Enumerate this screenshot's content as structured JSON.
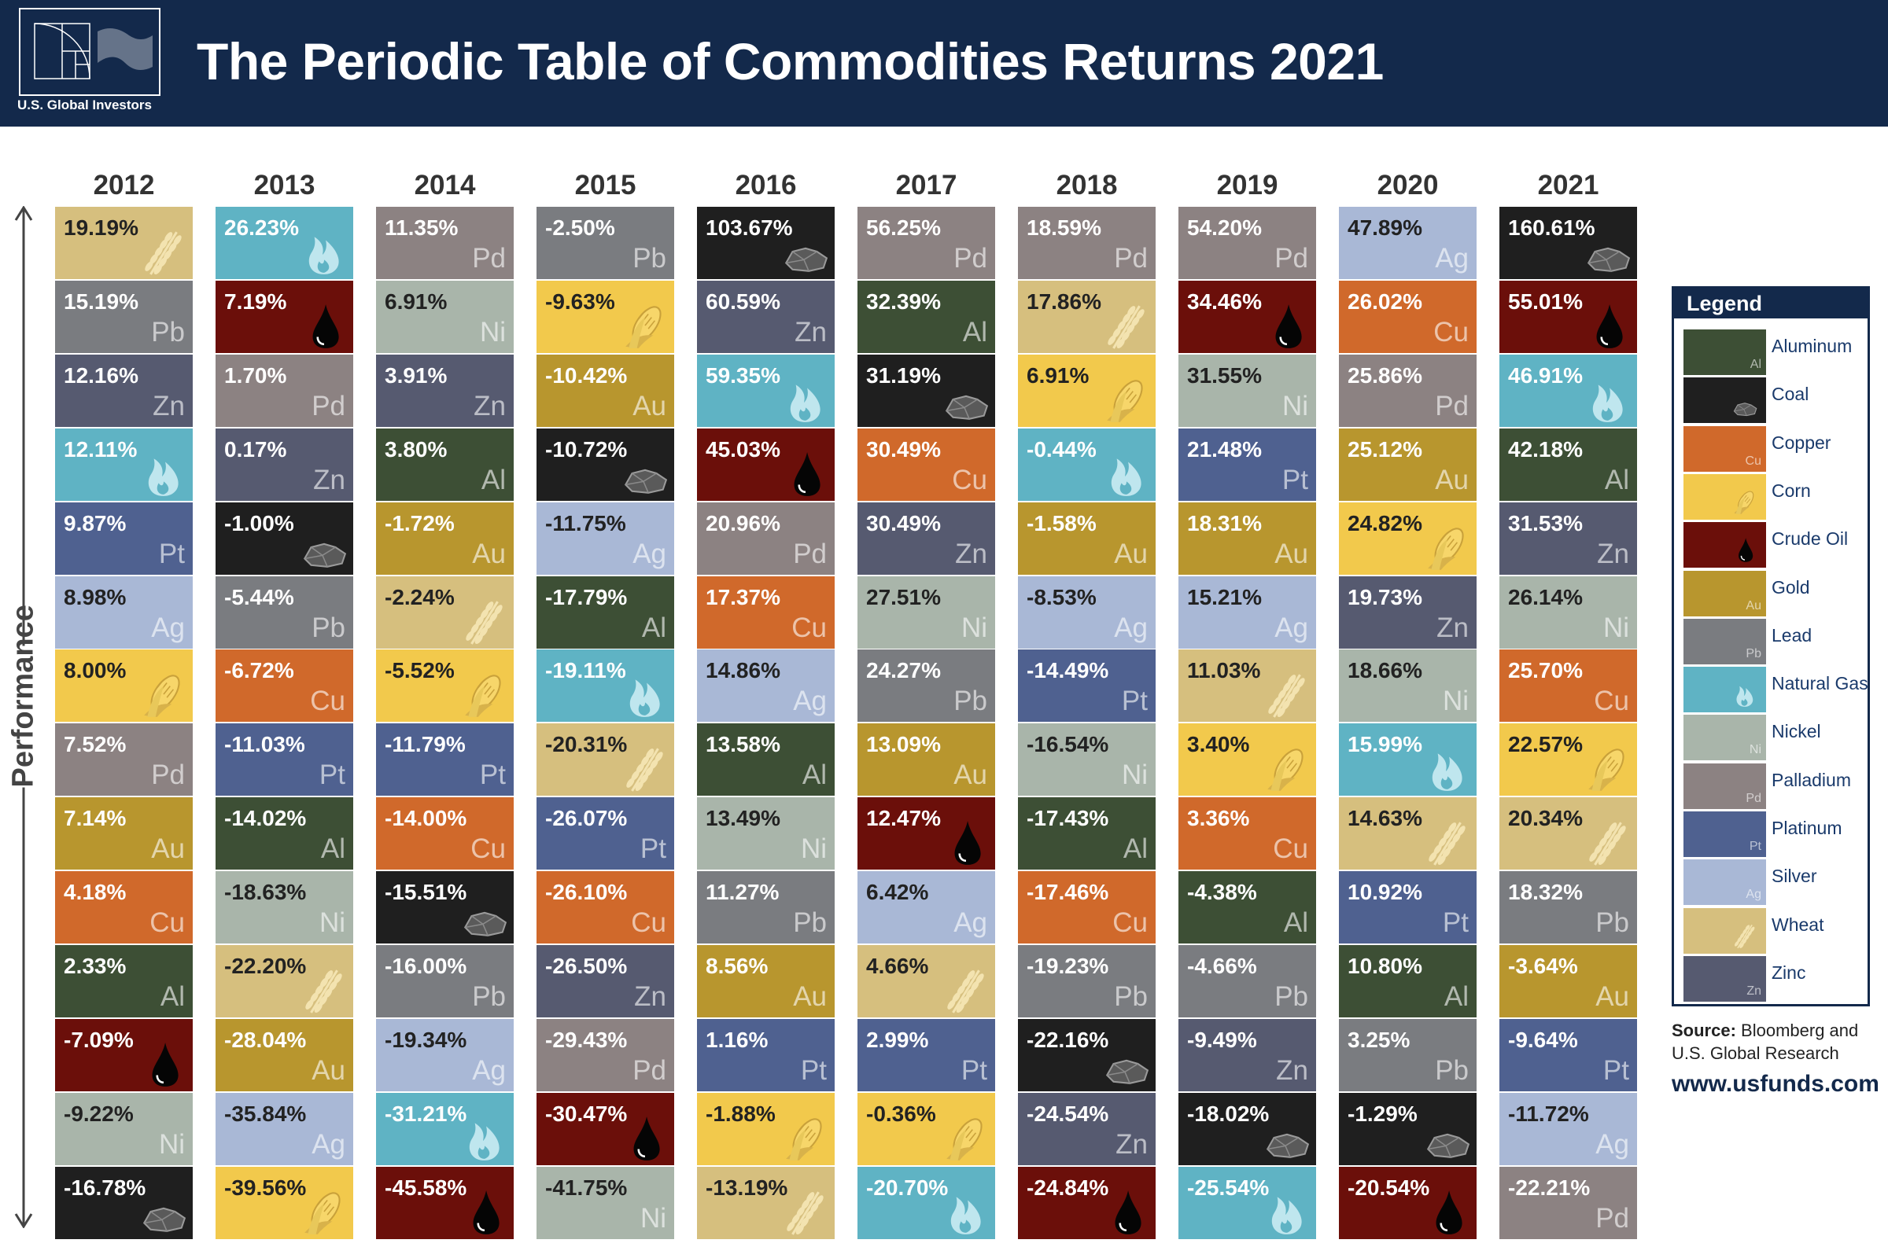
{
  "header": {
    "title": "The Periodic Table of Commodities Returns 2021",
    "brand": "U.S. Global Investors"
  },
  "axis_label": "Performance",
  "legend": {
    "title": "Legend",
    "items": [
      {
        "name": "Aluminum",
        "symbol": "Al",
        "color": "#3d4f35"
      },
      {
        "name": "Coal",
        "icon": "coal",
        "color": "#1f1f1f"
      },
      {
        "name": "Copper",
        "symbol": "Cu",
        "color": "#d0692b"
      },
      {
        "name": "Corn",
        "icon": "corn",
        "color": "#f2c94c"
      },
      {
        "name": "Crude Oil",
        "icon": "oil",
        "color": "#6b0f0a"
      },
      {
        "name": "Gold",
        "symbol": "Au",
        "color": "#b8962e"
      },
      {
        "name": "Lead",
        "symbol": "Pb",
        "color": "#7a7c80"
      },
      {
        "name": "Natural Gas",
        "icon": "gas",
        "color": "#5fb3c4"
      },
      {
        "name": "Nickel",
        "symbol": "Ni",
        "color": "#a9b5aa"
      },
      {
        "name": "Palladium",
        "symbol": "Pd",
        "color": "#8c8282"
      },
      {
        "name": "Platinum",
        "symbol": "Pt",
        "color": "#4f6190"
      },
      {
        "name": "Silver",
        "symbol": "Ag",
        "color": "#a9b8d6"
      },
      {
        "name": "Wheat",
        "icon": "wheat",
        "color": "#d6bf7e"
      },
      {
        "name": "Zinc",
        "symbol": "Zn",
        "color": "#565a70"
      }
    ]
  },
  "source": {
    "label": "Source:",
    "text": "Bloomberg and U.S. Global Research",
    "url": "www.usfunds.com"
  },
  "columns": [
    {
      "year": "2012",
      "cells": [
        {
          "value": "19.19%",
          "commodity": "Wheat"
        },
        {
          "value": "15.19%",
          "commodity": "Lead"
        },
        {
          "value": "12.16%",
          "commodity": "Zinc"
        },
        {
          "value": "12.11%",
          "commodity": "Natural Gas"
        },
        {
          "value": "9.87%",
          "commodity": "Platinum"
        },
        {
          "value": "8.98%",
          "commodity": "Silver"
        },
        {
          "value": "8.00%",
          "commodity": "Corn"
        },
        {
          "value": "7.52%",
          "commodity": "Palladium"
        },
        {
          "value": "7.14%",
          "commodity": "Gold"
        },
        {
          "value": "4.18%",
          "commodity": "Copper"
        },
        {
          "value": "2.33%",
          "commodity": "Aluminum"
        },
        {
          "value": "-7.09%",
          "commodity": "Crude Oil"
        },
        {
          "value": "-9.22%",
          "commodity": "Nickel"
        },
        {
          "value": "-16.78%",
          "commodity": "Coal"
        }
      ]
    },
    {
      "year": "2013",
      "cells": [
        {
          "value": "26.23%",
          "commodity": "Natural Gas"
        },
        {
          "value": "7.19%",
          "commodity": "Crude Oil"
        },
        {
          "value": "1.70%",
          "commodity": "Palladium"
        },
        {
          "value": "0.17%",
          "commodity": "Zinc"
        },
        {
          "value": "-1.00%",
          "commodity": "Coal"
        },
        {
          "value": "-5.44%",
          "commodity": "Lead"
        },
        {
          "value": "-6.72%",
          "commodity": "Copper"
        },
        {
          "value": "-11.03%",
          "commodity": "Platinum"
        },
        {
          "value": "-14.02%",
          "commodity": "Aluminum"
        },
        {
          "value": "-18.63%",
          "commodity": "Nickel"
        },
        {
          "value": "-22.20%",
          "commodity": "Wheat"
        },
        {
          "value": "-28.04%",
          "commodity": "Gold"
        },
        {
          "value": "-35.84%",
          "commodity": "Silver"
        },
        {
          "value": "-39.56%",
          "commodity": "Corn"
        }
      ]
    },
    {
      "year": "2014",
      "cells": [
        {
          "value": "11.35%",
          "commodity": "Palladium"
        },
        {
          "value": "6.91%",
          "commodity": "Nickel"
        },
        {
          "value": "3.91%",
          "commodity": "Zinc"
        },
        {
          "value": "3.80%",
          "commodity": "Aluminum"
        },
        {
          "value": "-1.72%",
          "commodity": "Gold"
        },
        {
          "value": "-2.24%",
          "commodity": "Wheat"
        },
        {
          "value": "-5.52%",
          "commodity": "Corn"
        },
        {
          "value": "-11.79%",
          "commodity": "Platinum"
        },
        {
          "value": "-14.00%",
          "commodity": "Copper"
        },
        {
          "value": "-15.51%",
          "commodity": "Coal"
        },
        {
          "value": "-16.00%",
          "commodity": "Lead"
        },
        {
          "value": "-19.34%",
          "commodity": "Silver"
        },
        {
          "value": "-31.21%",
          "commodity": "Natural Gas"
        },
        {
          "value": "-45.58%",
          "commodity": "Crude Oil"
        }
      ]
    },
    {
      "year": "2015",
      "cells": [
        {
          "value": "-2.50%",
          "commodity": "Lead"
        },
        {
          "value": "-9.63%",
          "commodity": "Corn"
        },
        {
          "value": "-10.42%",
          "commodity": "Gold"
        },
        {
          "value": "-10.72%",
          "commodity": "Coal"
        },
        {
          "value": "-11.75%",
          "commodity": "Silver"
        },
        {
          "value": "-17.79%",
          "commodity": "Aluminum"
        },
        {
          "value": "-19.11%",
          "commodity": "Natural Gas"
        },
        {
          "value": "-20.31%",
          "commodity": "Wheat"
        },
        {
          "value": "-26.07%",
          "commodity": "Platinum"
        },
        {
          "value": "-26.10%",
          "commodity": "Copper"
        },
        {
          "value": "-26.50%",
          "commodity": "Zinc"
        },
        {
          "value": "-29.43%",
          "commodity": "Palladium"
        },
        {
          "value": "-30.47%",
          "commodity": "Crude Oil"
        },
        {
          "value": "-41.75%",
          "commodity": "Nickel"
        }
      ]
    },
    {
      "year": "2016",
      "cells": [
        {
          "value": "103.67%",
          "commodity": "Coal"
        },
        {
          "value": "60.59%",
          "commodity": "Zinc"
        },
        {
          "value": "59.35%",
          "commodity": "Natural Gas"
        },
        {
          "value": "45.03%",
          "commodity": "Crude Oil"
        },
        {
          "value": "20.96%",
          "commodity": "Palladium"
        },
        {
          "value": "17.37%",
          "commodity": "Copper"
        },
        {
          "value": "14.86%",
          "commodity": "Silver"
        },
        {
          "value": "13.58%",
          "commodity": "Aluminum"
        },
        {
          "value": "13.49%",
          "commodity": "Nickel"
        },
        {
          "value": "11.27%",
          "commodity": "Lead"
        },
        {
          "value": "8.56%",
          "commodity": "Gold"
        },
        {
          "value": "1.16%",
          "commodity": "Platinum"
        },
        {
          "value": "-1.88%",
          "commodity": "Corn"
        },
        {
          "value": "-13.19%",
          "commodity": "Wheat"
        }
      ]
    },
    {
      "year": "2017",
      "cells": [
        {
          "value": "56.25%",
          "commodity": "Palladium"
        },
        {
          "value": "32.39%",
          "commodity": "Aluminum"
        },
        {
          "value": "31.19%",
          "commodity": "Coal"
        },
        {
          "value": "30.49%",
          "commodity": "Copper"
        },
        {
          "value": "30.49%",
          "commodity": "Zinc"
        },
        {
          "value": "27.51%",
          "commodity": "Nickel"
        },
        {
          "value": "24.27%",
          "commodity": "Lead"
        },
        {
          "value": "13.09%",
          "commodity": "Gold"
        },
        {
          "value": "12.47%",
          "commodity": "Crude Oil"
        },
        {
          "value": "6.42%",
          "commodity": "Silver"
        },
        {
          "value": "4.66%",
          "commodity": "Wheat"
        },
        {
          "value": "2.99%",
          "commodity": "Platinum"
        },
        {
          "value": "-0.36%",
          "commodity": "Corn"
        },
        {
          "value": "-20.70%",
          "commodity": "Natural Gas"
        }
      ]
    },
    {
      "year": "2018",
      "cells": [
        {
          "value": "18.59%",
          "commodity": "Palladium"
        },
        {
          "value": "17.86%",
          "commodity": "Wheat"
        },
        {
          "value": "6.91%",
          "commodity": "Corn"
        },
        {
          "value": "-0.44%",
          "commodity": "Natural Gas"
        },
        {
          "value": "-1.58%",
          "commodity": "Gold"
        },
        {
          "value": "-8.53%",
          "commodity": "Silver"
        },
        {
          "value": "-14.49%",
          "commodity": "Platinum"
        },
        {
          "value": "-16.54%",
          "commodity": "Nickel"
        },
        {
          "value": "-17.43%",
          "commodity": "Aluminum"
        },
        {
          "value": "-17.46%",
          "commodity": "Copper"
        },
        {
          "value": "-19.23%",
          "commodity": "Lead"
        },
        {
          "value": "-22.16%",
          "commodity": "Coal"
        },
        {
          "value": "-24.54%",
          "commodity": "Zinc"
        },
        {
          "value": "-24.84%",
          "commodity": "Crude Oil"
        }
      ]
    },
    {
      "year": "2019",
      "cells": [
        {
          "value": "54.20%",
          "commodity": "Palladium"
        },
        {
          "value": "34.46%",
          "commodity": "Crude Oil"
        },
        {
          "value": "31.55%",
          "commodity": "Nickel"
        },
        {
          "value": "21.48%",
          "commodity": "Platinum"
        },
        {
          "value": "18.31%",
          "commodity": "Gold"
        },
        {
          "value": "15.21%",
          "commodity": "Silver"
        },
        {
          "value": "11.03%",
          "commodity": "Wheat"
        },
        {
          "value": "3.40%",
          "commodity": "Corn"
        },
        {
          "value": "3.36%",
          "commodity": "Copper"
        },
        {
          "value": "-4.38%",
          "commodity": "Aluminum"
        },
        {
          "value": "-4.66%",
          "commodity": "Lead"
        },
        {
          "value": "-9.49%",
          "commodity": "Zinc"
        },
        {
          "value": "-18.02%",
          "commodity": "Coal"
        },
        {
          "value": "-25.54%",
          "commodity": "Natural Gas"
        }
      ]
    },
    {
      "year": "2020",
      "cells": [
        {
          "value": "47.89%",
          "commodity": "Silver"
        },
        {
          "value": "26.02%",
          "commodity": "Copper"
        },
        {
          "value": "25.86%",
          "commodity": "Palladium"
        },
        {
          "value": "25.12%",
          "commodity": "Gold"
        },
        {
          "value": "24.82%",
          "commodity": "Corn"
        },
        {
          "value": "19.73%",
          "commodity": "Zinc"
        },
        {
          "value": "18.66%",
          "commodity": "Nickel"
        },
        {
          "value": "15.99%",
          "commodity": "Natural Gas"
        },
        {
          "value": "14.63%",
          "commodity": "Wheat"
        },
        {
          "value": "10.92%",
          "commodity": "Platinum"
        },
        {
          "value": "10.80%",
          "commodity": "Aluminum"
        },
        {
          "value": "3.25%",
          "commodity": "Lead"
        },
        {
          "value": "-1.29%",
          "commodity": "Coal"
        },
        {
          "value": "-20.54%",
          "commodity": "Crude Oil"
        }
      ]
    },
    {
      "year": "2021",
      "cells": [
        {
          "value": "160.61%",
          "commodity": "Coal"
        },
        {
          "value": "55.01%",
          "commodity": "Crude Oil"
        },
        {
          "value": "46.91%",
          "commodity": "Natural Gas"
        },
        {
          "value": "42.18%",
          "commodity": "Aluminum"
        },
        {
          "value": "31.53%",
          "commodity": "Zinc"
        },
        {
          "value": "26.14%",
          "commodity": "Nickel"
        },
        {
          "value": "25.70%",
          "commodity": "Copper"
        },
        {
          "value": "22.57%",
          "commodity": "Corn"
        },
        {
          "value": "20.34%",
          "commodity": "Wheat"
        },
        {
          "value": "18.32%",
          "commodity": "Lead"
        },
        {
          "value": "-3.64%",
          "commodity": "Gold"
        },
        {
          "value": "-9.64%",
          "commodity": "Platinum"
        },
        {
          "value": "-11.72%",
          "commodity": "Silver"
        },
        {
          "value": "-22.21%",
          "commodity": "Palladium"
        }
      ]
    }
  ]
}
